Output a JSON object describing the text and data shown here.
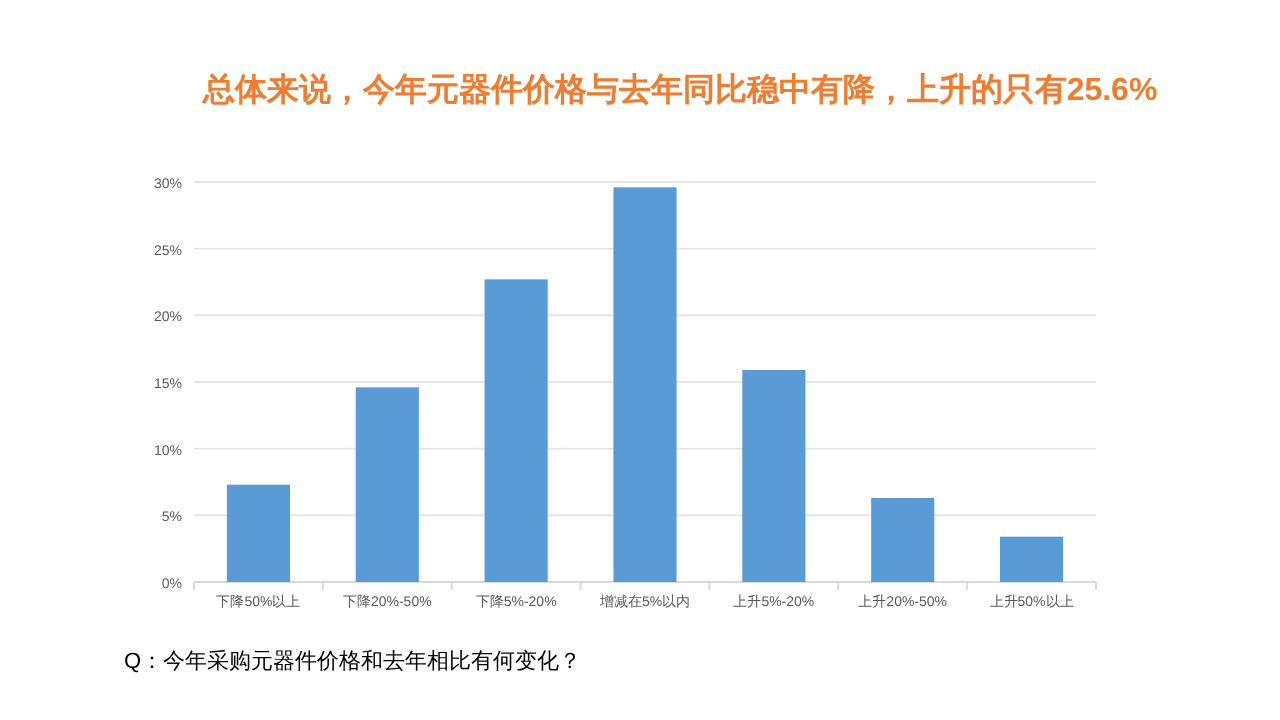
{
  "chart_data": {
    "type": "bar",
    "title": "总体来说，今年元器件价格与去年同比稳中有降，上升的只有25.6%",
    "categories": [
      "下降50%以上",
      "下降20%-50%",
      "下降5%-20%",
      "增减在5%以内",
      "上升5%-20%",
      "上升20%-50%",
      "上升50%以上"
    ],
    "values": [
      7.3,
      14.6,
      22.7,
      29.6,
      15.9,
      6.3,
      3.4
    ],
    "color": "#5b9bd5",
    "ylim": [
      0,
      30
    ],
    "yticks": [
      {
        "value": 0,
        "label": "0%"
      },
      {
        "value": 5,
        "label": "5%"
      },
      {
        "value": 10,
        "label": "10%"
      },
      {
        "value": 15,
        "label": "15%"
      },
      {
        "value": 20,
        "label": "20%"
      },
      {
        "value": 25,
        "label": "25%"
      },
      {
        "value": 30,
        "label": "30%"
      }
    ],
    "grid": "y",
    "annotations": [
      "Q：今年采购元器件价格和去年相比有何变化？"
    ]
  }
}
